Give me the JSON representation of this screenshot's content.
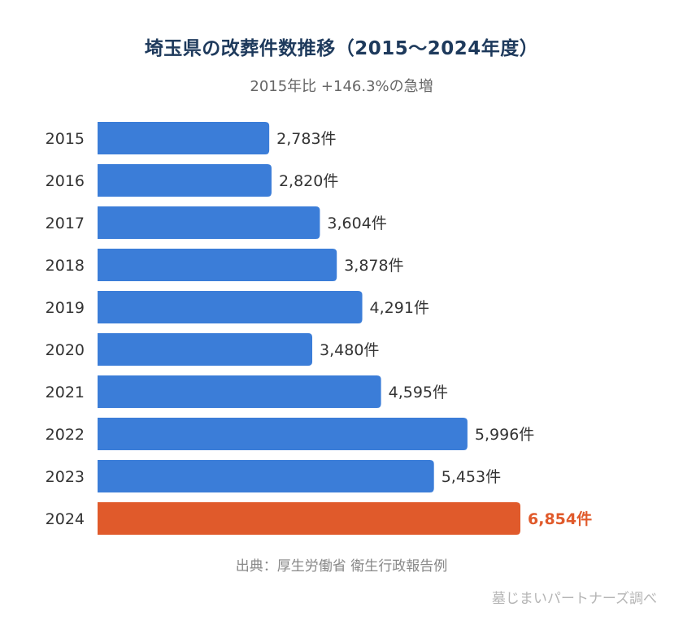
{
  "title": "埼玉県の改葬件数推移（2015〜2024年度）",
  "subtitle": "2015年比 +146.3%の急増",
  "source": "出典：厚生労働省 衛生行政報告例",
  "credit": "墓じまいパートナーズ調べ",
  "colors": {
    "bar": "#3b7dd8",
    "highlight": "#e05a2b",
    "title": "#1e3a5c",
    "label": "#333333"
  },
  "chart_data": {
    "type": "bar",
    "orientation": "horizontal",
    "title": "埼玉県の改葬件数推移（2015〜2024年度）",
    "subtitle": "2015年比 +146.3%の急増",
    "xlabel": "",
    "ylabel": "",
    "unit": "件",
    "categories": [
      "2015",
      "2016",
      "2017",
      "2018",
      "2019",
      "2020",
      "2021",
      "2022",
      "2023",
      "2024"
    ],
    "values": [
      2783,
      2820,
      3604,
      3878,
      4291,
      3480,
      4595,
      5996,
      5453,
      6854
    ],
    "value_labels": [
      "2,783件",
      "2,820件",
      "3,604件",
      "3,878件",
      "4,291件",
      "3,480件",
      "4,595件",
      "5,996件",
      "5,453件",
      "6,854件"
    ],
    "highlight_category": "2024",
    "xlim": [
      0,
      6854
    ],
    "grid": false,
    "legend": "none"
  }
}
